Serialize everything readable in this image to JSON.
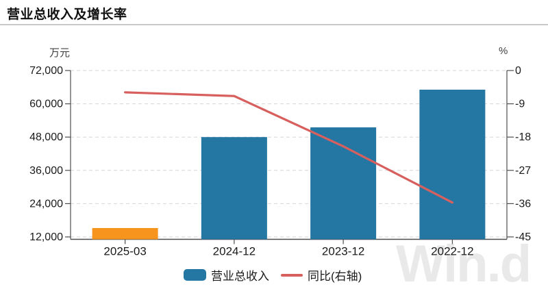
{
  "header": {
    "title": "营业总收入及增长率"
  },
  "chart_data": {
    "type": "combo_bar_line",
    "categories": [
      "2025-03",
      "2024-12",
      "2023-12",
      "2022-12"
    ],
    "series": [
      {
        "name": "营业总收入",
        "type": "bar",
        "axis": "left",
        "unit": "万元",
        "values": [
          15200,
          48000,
          51500,
          65100
        ],
        "bar_colors": [
          "#f7941e",
          "#2577a3",
          "#2577a3",
          "#2577a3"
        ]
      },
      {
        "name": "同比(右轴)",
        "type": "line",
        "axis": "right",
        "unit": "%",
        "values": [
          -5.9,
          -6.9,
          -20.5,
          -35.7
        ],
        "color": "#d7605e"
      }
    ],
    "left_axis": {
      "unit": "万元",
      "ticks": [
        72000,
        60000,
        48000,
        36000,
        24000,
        12000
      ],
      "tick_labels": [
        "72,000",
        "60,000",
        "48,000",
        "36,000",
        "24,000",
        "12,000"
      ],
      "max": 72000,
      "min": 12000
    },
    "right_axis": {
      "unit": "%",
      "ticks": [
        0,
        -9,
        -18,
        -27,
        -36,
        -45
      ],
      "tick_labels": [
        "0",
        "-9",
        "-18",
        "-27",
        "-36",
        "-45"
      ],
      "max": 0,
      "min": -45
    },
    "grid": true,
    "legend_position": "bottom"
  },
  "legend": {
    "items": [
      {
        "label": "营业总收入",
        "swatch": "bar",
        "color": "#2577a3"
      },
      {
        "label": "同比(右轴)",
        "swatch": "line",
        "color": "#d7605e"
      }
    ]
  },
  "watermark": {
    "text": "Win.d"
  },
  "colors": {
    "bar_teal": "#2577a3",
    "bar_orange": "#f7941e",
    "line_red": "#d7605e",
    "grid": "#d5d5d5",
    "axis": "#4d4d4d",
    "tick_text": "#1a1a1a"
  }
}
